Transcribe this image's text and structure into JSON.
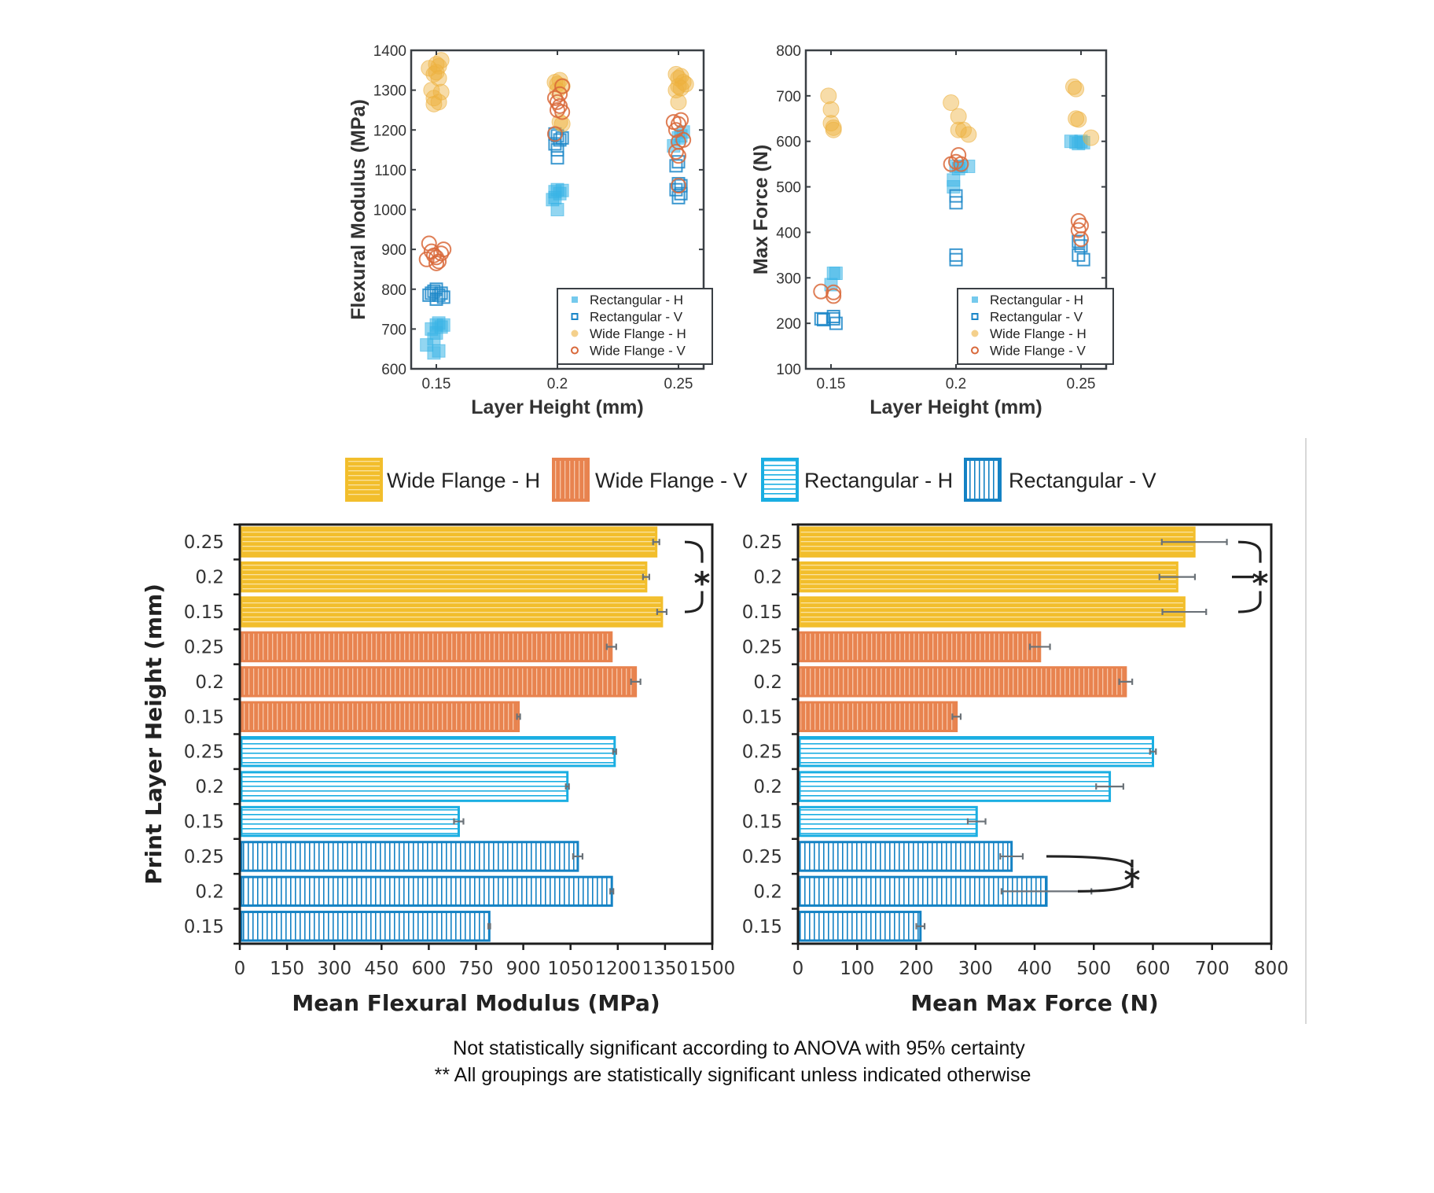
{
  "colors": {
    "wide_flange_h": "#F2BE2C",
    "wide_flange_v": "#E8834F",
    "rectangular_h": "#1AAEE2",
    "rectangular_v": "#1482C4",
    "scatter_wfh": "#EDB13F",
    "scatter_wfv": "#D9683A",
    "scatter_rh": "#3BB4E6",
    "scatter_rv": "#1A86C8",
    "axis": "#333333",
    "error_bar": "#6B7278"
  },
  "chart_data": [
    {
      "id": "scatter-modulus",
      "type": "scatter",
      "title": "",
      "xlabel": "Layer Height (mm)",
      "ylabel": "Flexural Modulus (MPa)",
      "xlim": [
        0.14,
        0.26
      ],
      "ylim": [
        600,
        1400
      ],
      "xticks": [
        0.15,
        0.2,
        0.25
      ],
      "xtick_labels": [
        "0.15",
        "0.2",
        "0.25"
      ],
      "yticks": [
        600,
        700,
        800,
        900,
        1000,
        1100,
        1200,
        1300,
        1400
      ],
      "legend": [
        "Rectangular - H",
        "Rectangular - V",
        "Wide Flange - H",
        "Wide Flange - V"
      ],
      "legend_position": "bottom-right",
      "series": [
        {
          "name": "Rectangular - H",
          "marker": "filled-square",
          "points": [
            [
              0.146,
              660
            ],
            [
              0.148,
              700
            ],
            [
              0.149,
              675
            ],
            [
              0.15,
              710
            ],
            [
              0.151,
              715
            ],
            [
              0.152,
              705
            ],
            [
              0.153,
              710
            ],
            [
              0.149,
              640
            ],
            [
              0.151,
              645
            ],
            [
              0.15,
              690
            ],
            [
              0.198,
              1025
            ],
            [
              0.199,
              1045
            ],
            [
              0.2,
              1050
            ],
            [
              0.201,
              1040
            ],
            [
              0.202,
              1048
            ],
            [
              0.2,
              1000
            ],
            [
              0.199,
              1030
            ],
            [
              0.248,
              1160
            ],
            [
              0.25,
              1180
            ],
            [
              0.252,
              1195
            ],
            [
              0.251,
              1185
            ]
          ]
        },
        {
          "name": "Rectangular - V",
          "marker": "open-square",
          "points": [
            [
              0.147,
              785
            ],
            [
              0.148,
              790
            ],
            [
              0.149,
              795
            ],
            [
              0.15,
              800
            ],
            [
              0.151,
              785
            ],
            [
              0.152,
              790
            ],
            [
              0.153,
              780
            ],
            [
              0.15,
              775
            ],
            [
              0.199,
              1190
            ],
            [
              0.2,
              1185
            ],
            [
              0.201,
              1175
            ],
            [
              0.199,
              1165
            ],
            [
              0.2,
              1150
            ],
            [
              0.2,
              1130
            ],
            [
              0.202,
              1180
            ],
            [
              0.249,
              1110
            ],
            [
              0.25,
              1120
            ],
            [
              0.25,
              1065
            ],
            [
              0.249,
              1050
            ],
            [
              0.251,
              1040
            ],
            [
              0.25,
              1030
            ],
            [
              0.251,
              1060
            ]
          ]
        },
        {
          "name": "Wide Flange - H",
          "marker": "filled-circle",
          "points": [
            [
              0.147,
              1355
            ],
            [
              0.149,
              1340
            ],
            [
              0.15,
              1365
            ],
            [
              0.151,
              1360
            ],
            [
              0.152,
              1375
            ],
            [
              0.15,
              1345
            ],
            [
              0.151,
              1330
            ],
            [
              0.148,
              1300
            ],
            [
              0.149,
              1280
            ],
            [
              0.152,
              1295
            ],
            [
              0.151,
              1270
            ],
            [
              0.149,
              1265
            ],
            [
              0.199,
              1320
            ],
            [
              0.2,
              1315
            ],
            [
              0.201,
              1325
            ],
            [
              0.202,
              1310
            ],
            [
              0.2,
              1300
            ],
            [
              0.201,
              1220
            ],
            [
              0.202,
              1215
            ],
            [
              0.249,
              1340
            ],
            [
              0.25,
              1330
            ],
            [
              0.251,
              1335
            ],
            [
              0.252,
              1320
            ],
            [
              0.25,
              1310
            ],
            [
              0.251,
              1305
            ],
            [
              0.249,
              1300
            ],
            [
              0.253,
              1315
            ],
            [
              0.25,
              1270
            ]
          ]
        },
        {
          "name": "Wide Flange - V",
          "marker": "open-circle",
          "points": [
            [
              0.146,
              875
            ],
            [
              0.147,
              915
            ],
            [
              0.148,
              895
            ],
            [
              0.149,
              885
            ],
            [
              0.15,
              880
            ],
            [
              0.151,
              870
            ],
            [
              0.152,
              890
            ],
            [
              0.153,
              900
            ],
            [
              0.15,
              865
            ],
            [
              0.199,
              1280
            ],
            [
              0.2,
              1270
            ],
            [
              0.201,
              1260
            ],
            [
              0.2,
              1250
            ],
            [
              0.202,
              1245
            ],
            [
              0.201,
              1290
            ],
            [
              0.202,
              1310
            ],
            [
              0.199,
              1190
            ],
            [
              0.248,
              1220
            ],
            [
              0.249,
              1200
            ],
            [
              0.25,
              1215
            ],
            [
              0.251,
              1225
            ],
            [
              0.252,
              1175
            ],
            [
              0.25,
              1170
            ],
            [
              0.249,
              1145
            ],
            [
              0.25,
              1135
            ],
            [
              0.25,
              1060
            ]
          ]
        }
      ]
    },
    {
      "id": "scatter-force",
      "type": "scatter",
      "title": "",
      "xlabel": "Layer Height (mm)",
      "ylabel": "Max Force (N)",
      "xlim": [
        0.14,
        0.26
      ],
      "ylim": [
        100,
        800
      ],
      "xticks": [
        0.15,
        0.2,
        0.25
      ],
      "xtick_labels": [
        "0.15",
        "0.2",
        "0.25"
      ],
      "yticks": [
        100,
        200,
        300,
        400,
        500,
        600,
        700,
        800
      ],
      "legend": [
        "Rectangular - H",
        "Rectangular - V",
        "Wide Flange - H",
        "Wide Flange - V"
      ],
      "legend_position": "bottom-right",
      "series": [
        {
          "name": "Rectangular - H",
          "marker": "filled-square",
          "points": [
            [
              0.15,
              285
            ],
            [
              0.151,
              310
            ],
            [
              0.152,
              310
            ],
            [
              0.199,
              515
            ],
            [
              0.199,
              500
            ],
            [
              0.2,
              545
            ],
            [
              0.201,
              540
            ],
            [
              0.202,
              545
            ],
            [
              0.205,
              545
            ],
            [
              0.246,
              600
            ],
            [
              0.248,
              598
            ],
            [
              0.249,
              595
            ],
            [
              0.25,
              600
            ],
            [
              0.251,
              597
            ]
          ]
        },
        {
          "name": "Rectangular - V",
          "marker": "open-square",
          "points": [
            [
              0.146,
              210
            ],
            [
              0.147,
              208
            ],
            [
              0.151,
              215
            ],
            [
              0.151,
              210
            ],
            [
              0.152,
              200
            ],
            [
              0.2,
              480
            ],
            [
              0.2,
              465
            ],
            [
              0.2,
              350
            ],
            [
              0.2,
              340
            ],
            [
              0.249,
              380
            ],
            [
              0.25,
              370
            ],
            [
              0.249,
              350
            ],
            [
              0.251,
              340
            ]
          ]
        },
        {
          "name": "Wide Flange - H",
          "marker": "filled-circle",
          "points": [
            [
              0.149,
              700
            ],
            [
              0.15,
              670
            ],
            [
              0.15,
              640
            ],
            [
              0.151,
              630
            ],
            [
              0.151,
              625
            ],
            [
              0.198,
              685
            ],
            [
              0.201,
              655
            ],
            [
              0.201,
              625
            ],
            [
              0.203,
              625
            ],
            [
              0.205,
              615
            ],
            [
              0.247,
              720
            ],
            [
              0.248,
              715
            ],
            [
              0.248,
              650
            ],
            [
              0.249,
              648
            ],
            [
              0.254,
              608
            ]
          ]
        },
        {
          "name": "Wide Flange - V",
          "marker": "open-circle",
          "points": [
            [
              0.146,
              270
            ],
            [
              0.151,
              268
            ],
            [
              0.151,
              260
            ],
            [
              0.198,
              550
            ],
            [
              0.2,
              555
            ],
            [
              0.201,
              570
            ],
            [
              0.202,
              550
            ],
            [
              0.249,
              425
            ],
            [
              0.25,
              415
            ],
            [
              0.249,
              405
            ],
            [
              0.25,
              385
            ]
          ]
        }
      ]
    },
    {
      "id": "bar-modulus",
      "type": "bar",
      "orientation": "horizontal",
      "xlabel": "Mean Flexural Modulus (MPa)",
      "ylabel": "Print Layer Height (mm)",
      "xlim": [
        0,
        1500
      ],
      "xticks": [
        0,
        150,
        300,
        450,
        600,
        750,
        900,
        1050,
        1200,
        1350,
        1500
      ],
      "categories": [
        "0.25",
        "0.2",
        "0.15",
        "0.25",
        "0.2",
        "0.15",
        "0.25",
        "0.2",
        "0.15",
        "0.25",
        "0.2",
        "0.15"
      ],
      "groups": [
        "Wide Flange - H",
        "Wide Flange - H",
        "Wide Flange - H",
        "Wide Flange - V",
        "Wide Flange - V",
        "Wide Flange - V",
        "Rectangular - H",
        "Rectangular - H",
        "Rectangular - H",
        "Rectangular - V",
        "Rectangular - V",
        "Rectangular - V"
      ],
      "values": [
        1322,
        1290,
        1340,
        1180,
        1257,
        885,
        1190,
        1040,
        695,
        1073,
        1181,
        792
      ],
      "errors": [
        10,
        10,
        15,
        15,
        15,
        5,
        5,
        5,
        15,
        15,
        5,
        3
      ],
      "significance": [
        {
          "rows": [
            0,
            2
          ],
          "label": "*"
        }
      ]
    },
    {
      "id": "bar-force",
      "type": "bar",
      "orientation": "horizontal",
      "xlabel": "Mean Max Force (N)",
      "ylabel": "",
      "xlim": [
        0,
        800
      ],
      "xticks": [
        0,
        100,
        200,
        300,
        400,
        500,
        600,
        700,
        800
      ],
      "categories": [
        "0.25",
        "0.2",
        "0.15",
        "0.25",
        "0.2",
        "0.15",
        "0.25",
        "0.2",
        "0.15",
        "0.25",
        "0.2",
        "0.15"
      ],
      "groups": [
        "Wide Flange - H",
        "Wide Flange - H",
        "Wide Flange - H",
        "Wide Flange - V",
        "Wide Flange - V",
        "Wide Flange - V",
        "Rectangular - H",
        "Rectangular - H",
        "Rectangular - H",
        "Rectangular - V",
        "Rectangular - V",
        "Rectangular - V"
      ],
      "values": [
        670,
        641,
        653,
        409,
        554,
        268,
        600,
        527,
        302,
        361,
        420,
        207
      ],
      "errors": [
        55,
        30,
        37,
        17,
        11,
        7,
        5,
        23,
        15,
        19,
        76,
        7
      ],
      "significance": [
        {
          "rows": [
            0,
            2
          ],
          "label": "*",
          "middle_tick": true
        },
        {
          "rows": [
            9,
            10
          ],
          "label": "*"
        }
      ]
    }
  ],
  "bar_legend": [
    {
      "label": "Wide Flange - H",
      "pattern": "horizontal",
      "color_key": "wide_flange_h"
    },
    {
      "label": "Wide Flange - V",
      "pattern": "vertical",
      "color_key": "wide_flange_v"
    },
    {
      "label": "Rectangular - H",
      "pattern": "horizontal",
      "color_key": "rectangular_h"
    },
    {
      "label": "Rectangular - V",
      "pattern": "vertical",
      "color_key": "rectangular_v"
    }
  ],
  "footnotes": [
    "Not statistically significant according to ANOVA with 95% certainty",
    "** All groupings are statistically significant unless indicated otherwise"
  ]
}
